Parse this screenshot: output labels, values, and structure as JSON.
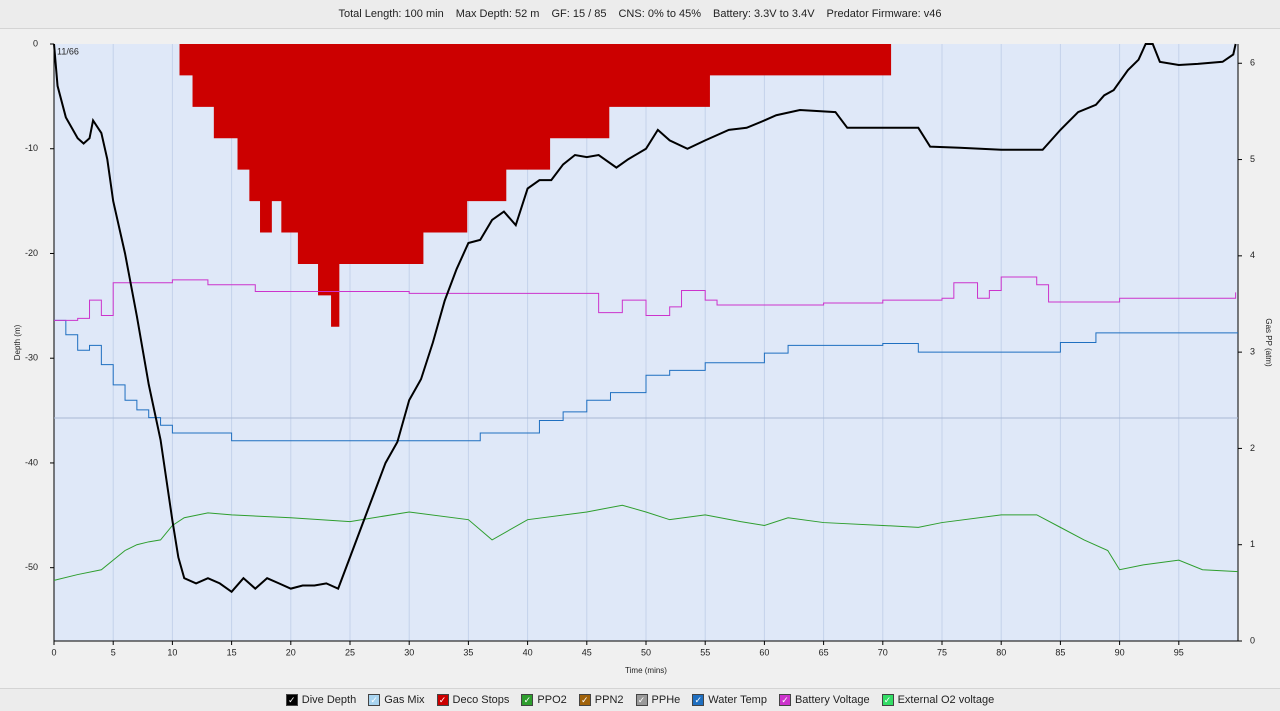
{
  "header": [
    "Total Length: 100 min",
    "Max Depth: 52 m",
    "GF: 15 / 85",
    "CNS: 0% to 45%",
    "Battery: 3.3V to 3.4V",
    "Predator Firmware: v46"
  ],
  "chart_data": {
    "type": "line",
    "annotation": "11/66",
    "xlabel": "Time (mins)",
    "ylabel": "Depth (m)",
    "y2label": "Gas PP (atm)",
    "xlim": [
      0,
      100
    ],
    "xticks": [
      0,
      5,
      10,
      15,
      20,
      25,
      30,
      35,
      40,
      45,
      50,
      55,
      60,
      65,
      70,
      75,
      80,
      85,
      90,
      95
    ],
    "ylim": [
      -57,
      0
    ],
    "yticks": [
      0,
      -10,
      -20,
      -30,
      -40,
      -50
    ],
    "y2lim": [
      0,
      6.2
    ],
    "y2ticks": [
      0,
      1,
      2,
      3,
      4,
      5,
      6
    ],
    "grid": true,
    "series": [
      {
        "name": "Dive Depth",
        "color": "#000000",
        "style": "line",
        "axis": "y",
        "x": [
          0,
          0.3,
          1,
          2,
          2.5,
          3,
          3.3,
          4,
          4.5,
          5,
          6,
          7,
          8,
          9,
          10,
          10.5,
          11,
          12,
          13,
          14,
          15,
          16,
          17,
          18,
          19,
          20,
          21,
          22,
          23,
          24,
          25,
          26,
          27,
          28,
          29,
          30,
          31,
          32,
          33,
          34,
          35,
          36,
          37,
          38,
          39,
          40,
          41,
          42,
          43,
          44,
          45,
          46,
          47.5,
          48.5,
          50,
          51,
          52,
          53.5,
          55,
          57,
          58.5,
          60,
          61,
          63,
          66,
          67,
          70,
          73,
          74,
          76.5,
          80,
          83.5,
          85,
          86.5,
          88,
          88.7,
          89.5,
          90.7,
          91.6,
          92.2,
          92.8,
          93.4,
          95,
          96.6,
          98.7,
          99.6,
          99.8
        ],
        "values": [
          0,
          -4,
          -7,
          -9,
          -9.5,
          -9,
          -7.3,
          -8.5,
          -11,
          -15,
          -20,
          -26,
          -32.5,
          -37.8,
          -45.5,
          -49,
          -51,
          -51.5,
          -51,
          -51.5,
          -52.3,
          -51,
          -52,
          -51,
          -51.5,
          -52,
          -51.7,
          -51.7,
          -51.5,
          -52,
          -49,
          -46,
          -43,
          -40,
          -38,
          -34,
          -32,
          -28.5,
          -24.5,
          -21.5,
          -19,
          -18.7,
          -16.8,
          -16,
          -17.3,
          -13.8,
          -13,
          -13,
          -11.5,
          -10.6,
          -10.8,
          -10.6,
          -11.8,
          -11,
          -10,
          -8.2,
          -9.2,
          -10,
          -9.2,
          -8.2,
          -8,
          -7.3,
          -6.8,
          -6.3,
          -6.5,
          -8,
          -8,
          -8,
          -9.8,
          -9.9,
          -10.1,
          -10.1,
          -8.2,
          -6.5,
          -5.8,
          -4.9,
          -4.4,
          -2.5,
          -1.5,
          0,
          0,
          -1.7,
          -2,
          -1.9,
          -1.7,
          -1,
          0
        ]
      },
      {
        "name": "Gas Mix",
        "color": "#a8d4f0",
        "style": "line",
        "axis": "y2",
        "x": [],
        "values": []
      },
      {
        "name": "Deco Stops",
        "color": "#cc0000",
        "style": "step-area",
        "axis": "y",
        "x": [
          10.6,
          11.7,
          13.5,
          15.5,
          16.5,
          17.4,
          18.4,
          19.2,
          20.6,
          22.3,
          23.4,
          24.1,
          31.2,
          34.9,
          38.2,
          41.9,
          46.9,
          55.4,
          70.7
        ],
        "values": [
          -3,
          -6,
          -9,
          -12,
          -15,
          -18,
          -15,
          -18,
          -21,
          -24,
          -27,
          -21,
          -18,
          -15,
          -12,
          -9,
          -6,
          -3,
          0
        ]
      },
      {
        "name": "PPO2",
        "color": "#2e9e2e",
        "style": "line",
        "axis": "y2",
        "x": [
          0,
          2,
          4,
          5,
          6,
          7,
          8,
          9,
          10,
          11,
          13,
          15,
          20,
          25,
          30,
          35,
          37,
          40,
          45,
          48,
          50,
          52,
          55,
          58,
          60,
          62,
          65,
          70,
          73,
          75,
          80,
          83,
          85,
          87,
          89,
          90,
          92,
          95,
          97,
          100
        ],
        "values": [
          0.63,
          0.69,
          0.74,
          0.84,
          0.94,
          1.0,
          1.03,
          1.05,
          1.2,
          1.28,
          1.33,
          1.31,
          1.28,
          1.24,
          1.34,
          1.26,
          1.05,
          1.26,
          1.34,
          1.41,
          1.34,
          1.26,
          1.31,
          1.24,
          1.2,
          1.28,
          1.23,
          1.2,
          1.18,
          1.23,
          1.31,
          1.31,
          1.18,
          1.05,
          0.94,
          0.74,
          0.79,
          0.84,
          0.74,
          0.72
        ]
      },
      {
        "name": "PPN2",
        "color": "#a0620a",
        "style": "line",
        "axis": "y2",
        "x": [],
        "values": []
      },
      {
        "name": "PPHe",
        "color": "#999999",
        "style": "line",
        "axis": "y2",
        "x": [],
        "values": []
      },
      {
        "name": "Water Temp",
        "color": "#1f6fc0",
        "style": "step",
        "axis": "y2",
        "x": [
          0,
          1,
          2,
          3,
          4,
          5,
          6,
          7,
          8,
          9,
          10,
          15,
          35,
          36,
          40,
          41,
          43,
          45,
          47,
          50,
          52,
          55,
          60,
          62,
          70,
          73,
          84,
          85,
          88,
          100
        ],
        "values": [
          3.33,
          3.18,
          3.02,
          3.07,
          2.87,
          2.66,
          2.5,
          2.4,
          2.32,
          2.24,
          2.16,
          2.08,
          2.08,
          2.16,
          2.16,
          2.29,
          2.38,
          2.5,
          2.58,
          2.76,
          2.81,
          2.89,
          2.99,
          3.07,
          3.09,
          3.0,
          3.0,
          3.1,
          3.2,
          3.2
        ]
      },
      {
        "name": "Battery Voltage",
        "color": "#cc33cc",
        "style": "step",
        "axis": "y2",
        "x": [
          0,
          2,
          3,
          4,
          5,
          10,
          13,
          17,
          30,
          46,
          48,
          50,
          52,
          53,
          55,
          56,
          60,
          65,
          70,
          75,
          76,
          78,
          79,
          80,
          83,
          84,
          90,
          99.8
        ],
        "values": [
          3.33,
          3.35,
          3.54,
          3.38,
          3.72,
          3.75,
          3.7,
          3.63,
          3.61,
          3.41,
          3.54,
          3.38,
          3.47,
          3.64,
          3.54,
          3.49,
          3.49,
          3.51,
          3.54,
          3.56,
          3.72,
          3.56,
          3.64,
          3.78,
          3.7,
          3.52,
          3.56,
          3.62
        ]
      },
      {
        "name": "External O2 voltage",
        "color": "#33dd66",
        "style": "line",
        "axis": "y2",
        "x": [],
        "values": []
      }
    ]
  }
}
